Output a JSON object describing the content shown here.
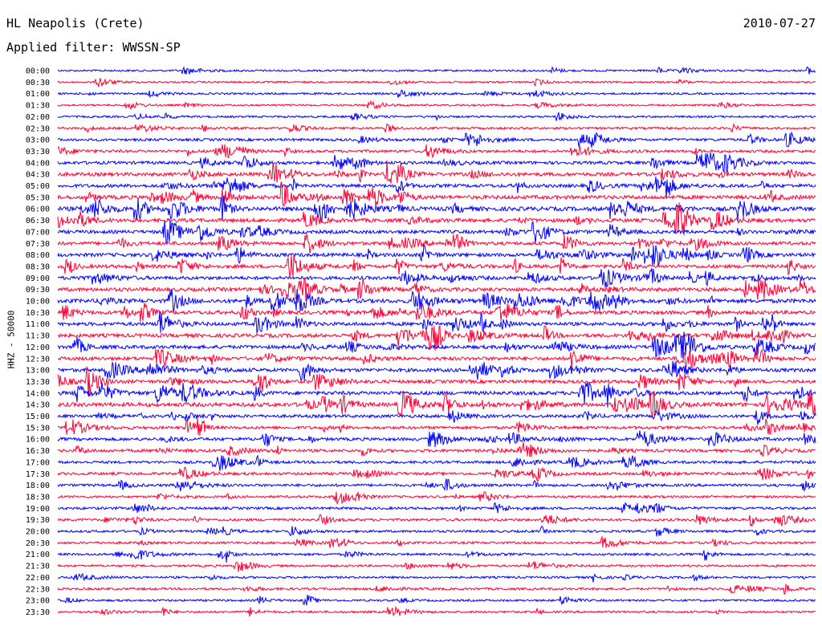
{
  "header": {
    "station": "HL Neapolis (Crete)",
    "date": "2010-07-27",
    "filter": "Applied filter: WWSSN-SP",
    "channel_label": "HHZ - 50000"
  },
  "chart_data": {
    "type": "line",
    "title": "HL Neapolis (Crete)",
    "ylabel": "HHZ - 50000",
    "grid": false,
    "colors": [
      "#0000ff",
      "#ff0033"
    ],
    "rows": [
      {
        "time": "00:00",
        "level": 0.2
      },
      {
        "time": "00:30",
        "level": 0.18
      },
      {
        "time": "01:00",
        "level": 0.22
      },
      {
        "time": "01:30",
        "level": 0.2
      },
      {
        "time": "02:00",
        "level": 0.22
      },
      {
        "time": "02:30",
        "level": 0.3
      },
      {
        "time": "03:00",
        "level": 0.45
      },
      {
        "time": "03:30",
        "level": 0.5
      },
      {
        "time": "04:00",
        "level": 0.6
      },
      {
        "time": "04:30",
        "level": 0.75
      },
      {
        "time": "05:00",
        "level": 0.7
      },
      {
        "time": "05:30",
        "level": 0.85
      },
      {
        "time": "06:00",
        "level": 0.95
      },
      {
        "time": "06:30",
        "level": 0.8
      },
      {
        "time": "07:00",
        "level": 0.7
      },
      {
        "time": "07:30",
        "level": 0.7
      },
      {
        "time": "08:00",
        "level": 0.75
      },
      {
        "time": "08:30",
        "level": 0.75
      },
      {
        "time": "09:00",
        "level": 0.7
      },
      {
        "time": "09:30",
        "level": 0.8
      },
      {
        "time": "10:00",
        "level": 0.9
      },
      {
        "time": "10:30",
        "level": 0.8
      },
      {
        "time": "11:00",
        "level": 0.75
      },
      {
        "time": "11:30",
        "level": 0.8
      },
      {
        "time": "12:00",
        "level": 0.75
      },
      {
        "time": "12:30",
        "level": 0.75
      },
      {
        "time": "13:00",
        "level": 0.75
      },
      {
        "time": "13:30",
        "level": 0.7
      },
      {
        "time": "14:00",
        "level": 0.8
      },
      {
        "time": "14:30",
        "level": 0.9
      },
      {
        "time": "15:00",
        "level": 0.6
      },
      {
        "time": "15:30",
        "level": 0.55
      },
      {
        "time": "16:00",
        "level": 0.6
      },
      {
        "time": "16:30",
        "level": 0.55
      },
      {
        "time": "17:00",
        "level": 0.45
      },
      {
        "time": "17:30",
        "level": 0.5
      },
      {
        "time": "18:00",
        "level": 0.45
      },
      {
        "time": "18:30",
        "level": 0.35
      },
      {
        "time": "19:00",
        "level": 0.4
      },
      {
        "time": "19:30",
        "level": 0.4
      },
      {
        "time": "20:00",
        "level": 0.35
      },
      {
        "time": "20:30",
        "level": 0.35
      },
      {
        "time": "21:00",
        "level": 0.35
      },
      {
        "time": "21:30",
        "level": 0.3
      },
      {
        "time": "22:00",
        "level": 0.3
      },
      {
        "time": "22:30",
        "level": 0.3
      },
      {
        "time": "23:00",
        "level": 0.25
      },
      {
        "time": "23:30",
        "level": 0.3
      }
    ]
  }
}
